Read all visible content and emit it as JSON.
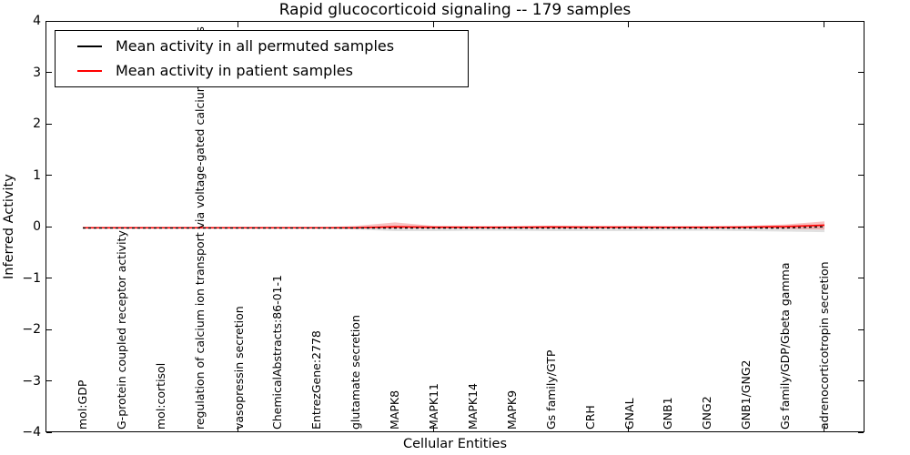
{
  "title": "Rapid glucocorticoid signaling -- 179 samples",
  "axes": {
    "ylabel": "Inferred Activity",
    "xlabel": "Cellular Entities",
    "y_ticks": [
      {
        "value": 4,
        "label": "4"
      },
      {
        "value": 3,
        "label": "3"
      },
      {
        "value": 2,
        "label": "2"
      },
      {
        "value": 1,
        "label": "1"
      },
      {
        "value": 0,
        "label": "0"
      },
      {
        "value": -1,
        "label": "−1"
      },
      {
        "value": -2,
        "label": "−2"
      },
      {
        "value": -3,
        "label": "−3"
      },
      {
        "value": -4,
        "label": "−4"
      }
    ],
    "x_tick_indices": [
      4,
      9,
      14,
      19
    ]
  },
  "legend": {
    "entries": [
      {
        "label": "Mean activity in all permuted samples",
        "color": "#000000"
      },
      {
        "label": "Mean activity in patient samples",
        "color": "#ff0000"
      }
    ]
  },
  "chart_data": {
    "type": "line",
    "title": "Rapid glucocorticoid signaling -- 179 samples",
    "xlabel": "Cellular Entities",
    "ylabel": "Inferred Activity",
    "ylim": [
      -4,
      4
    ],
    "grid": false,
    "legend_position": "upper left",
    "categories": [
      "mol:GDP",
      "G-protein coupled receptor activity",
      "mol:cortisol",
      "regulation of calcium ion transport via voltage-gated calcium channels",
      "vasopressin secretion",
      "ChemicalAbstracts:86-01-1",
      "EntrezGene:2778",
      "glutamate secretion",
      "MAPK8",
      "MAPK11",
      "MAPK14",
      "MAPK9",
      "Gs family/GTP",
      "CRH",
      "GNAL",
      "GNB1",
      "GNG2",
      "GNB1/GNG2",
      "Gs family/GDP/Gbeta gamma",
      "adrenocorticotropin secretion"
    ],
    "series": [
      {
        "name": "Mean activity in all permuted samples",
        "color": "#000000",
        "line_style": "dashed",
        "values": [
          -0.01,
          -0.01,
          -0.01,
          -0.01,
          -0.01,
          -0.01,
          -0.01,
          -0.01,
          -0.01,
          -0.01,
          -0.01,
          -0.01,
          -0.01,
          -0.01,
          -0.01,
          -0.01,
          -0.01,
          -0.01,
          -0.01,
          0.015
        ]
      },
      {
        "name": "Mean activity in patient samples",
        "color": "#ff0000",
        "line_style": "solid",
        "values": [
          -0.005,
          -0.005,
          -0.005,
          -0.005,
          -0.005,
          -0.005,
          -0.005,
          -0.005,
          0.015,
          0.005,
          0.005,
          0.005,
          0.01,
          0.008,
          0.008,
          0.006,
          0.006,
          0.008,
          0.018,
          0.045
        ]
      }
    ],
    "bands": [
      {
        "name": "permuted samples range",
        "color": "#c8c8c8",
        "opacity": 0.55,
        "low": [
          -0.015,
          -0.015,
          -0.015,
          -0.015,
          -0.015,
          -0.015,
          -0.015,
          -0.04,
          -0.07,
          -0.07,
          -0.065,
          -0.065,
          -0.07,
          -0.07,
          -0.07,
          -0.065,
          -0.065,
          -0.07,
          -0.08,
          -0.09
        ],
        "high": [
          0,
          0,
          0,
          0,
          0,
          0,
          0,
          0.01,
          0.02,
          0.015,
          0.01,
          0.01,
          0.015,
          0.01,
          0.01,
          0.01,
          0.01,
          0.015,
          0.025,
          0.035
        ]
      },
      {
        "name": "patient samples range",
        "color": "#f07878",
        "opacity": 0.45,
        "low": [
          -0.01,
          -0.01,
          -0.01,
          -0.01,
          -0.01,
          -0.01,
          -0.01,
          -0.015,
          -0.02,
          -0.015,
          -0.015,
          -0.015,
          -0.015,
          -0.015,
          -0.015,
          -0.015,
          -0.015,
          -0.015,
          -0.025,
          -0.04
        ],
        "high": [
          0,
          0,
          0,
          0,
          0,
          0,
          0,
          0.03,
          0.1,
          0.03,
          0.02,
          0.02,
          0.035,
          0.025,
          0.02,
          0.02,
          0.02,
          0.03,
          0.06,
          0.12
        ]
      }
    ]
  }
}
